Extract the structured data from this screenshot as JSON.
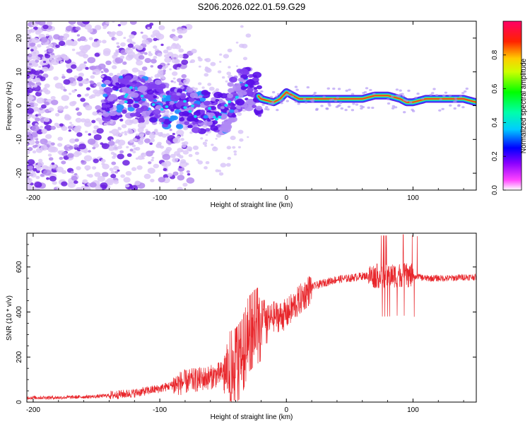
{
  "title": "S206.2026.022.01.59.G29",
  "chart_data": [
    {
      "type": "heatmap",
      "xlabel": "Height of straight line (km)",
      "ylabel": "Frequency (Hz)",
      "xlim": [
        -205,
        150
      ],
      "ylim": [
        -25,
        25
      ],
      "xticks": [
        -200,
        -100,
        0,
        100
      ],
      "yticks": [
        -20,
        -10,
        0,
        10,
        20
      ],
      "colorbar": {
        "label": "Normalized spectral amplitude",
        "ticks": [
          0.0,
          0.2,
          0.4,
          0.6,
          0.8
        ],
        "range": [
          0,
          1
        ],
        "colormap": [
          "#ffffff",
          "#ff00ff",
          "#0000ff",
          "#00ffff",
          "#00ff00",
          "#ffff00",
          "#ff0000",
          "#ff0055"
        ]
      },
      "dominant_frequency_trace": {
        "x": [
          -145,
          -130,
          -120,
          -110,
          -100,
          -90,
          -80,
          -70,
          -60,
          -50,
          -40,
          -35,
          -30,
          -25,
          -20,
          -10,
          -5,
          0,
          10,
          20,
          40,
          60,
          70,
          80,
          90,
          95,
          100,
          110,
          120,
          140,
          150
        ],
        "y": [
          2,
          3,
          3,
          2,
          1,
          -1,
          0,
          -2,
          -1,
          -3,
          3,
          6,
          5,
          4,
          2,
          1,
          2,
          4,
          2,
          2,
          2,
          2,
          3,
          3,
          2,
          1,
          1,
          2,
          2,
          2,
          1
        ]
      }
    },
    {
      "type": "line",
      "xlabel": "Height of straight line (km)",
      "ylabel": "SNR (10 * v/v)",
      "xlim": [
        -205,
        150
      ],
      "ylim": [
        0,
        750
      ],
      "xticks": [
        -200,
        -100,
        0,
        100
      ],
      "yticks": [
        0,
        200,
        400,
        600
      ],
      "series": [
        {
          "name": "SNR",
          "color": "#e8262b",
          "x": [
            -205,
            -180,
            -150,
            -140,
            -120,
            -100,
            -80,
            -60,
            -50,
            -40,
            -35,
            -30,
            -25,
            -20,
            -15,
            -10,
            -5,
            0,
            5,
            10,
            15,
            20,
            30,
            40,
            50,
            60,
            70,
            80,
            90,
            100,
            110,
            120,
            130,
            140,
            150
          ],
          "y": [
            20,
            20,
            25,
            30,
            40,
            60,
            90,
            110,
            130,
            160,
            200,
            300,
            330,
            350,
            360,
            380,
            380,
            390,
            420,
            450,
            480,
            510,
            530,
            545,
            550,
            560,
            560,
            560,
            565,
            560,
            550,
            550,
            550,
            555,
            555
          ]
        }
      ]
    }
  ]
}
